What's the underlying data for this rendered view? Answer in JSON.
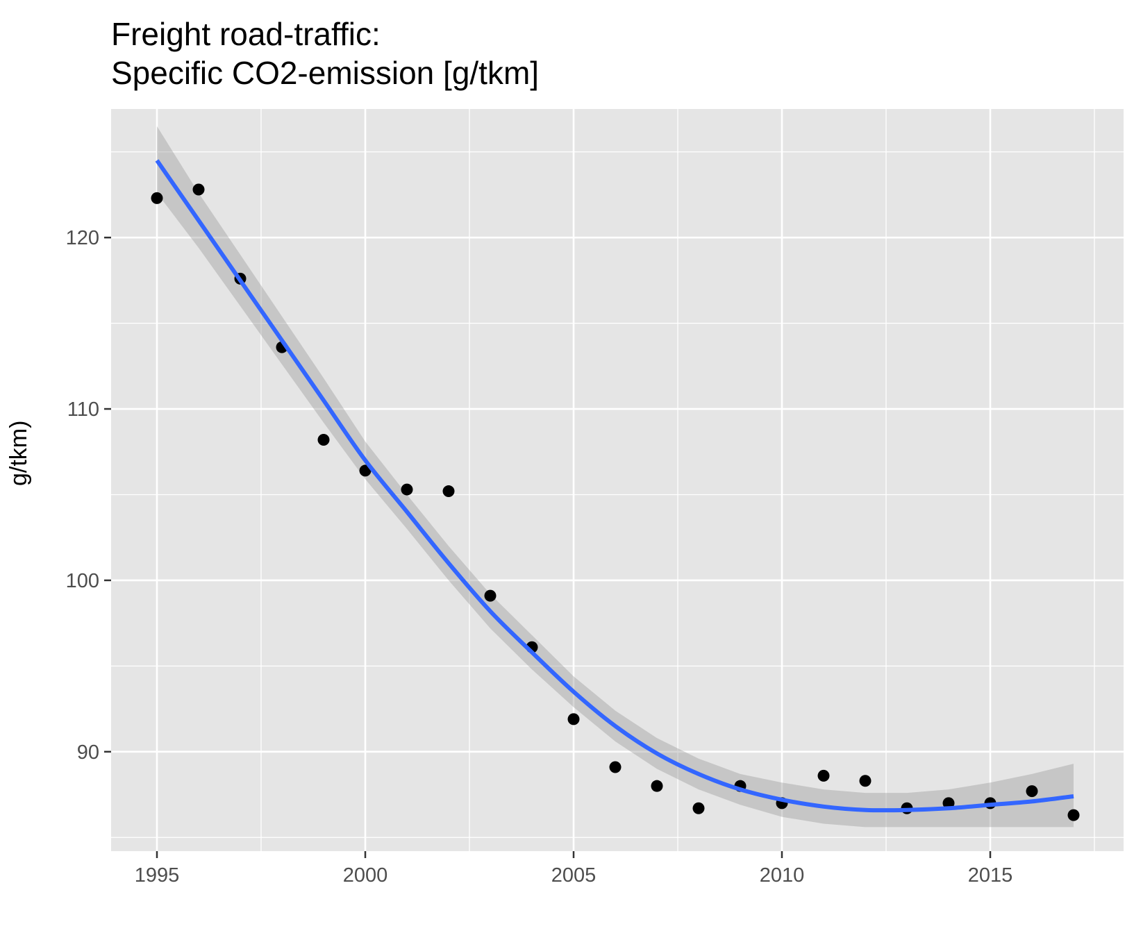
{
  "chart_data": {
    "type": "scatter",
    "title": "Freight road-traffic:",
    "subtitle": "Specific CO2-emission  [g/tkm]",
    "xlabel": "",
    "ylabel": "g/tkm)",
    "xlim": [
      1993.9,
      2018.2
    ],
    "ylim": [
      84.2,
      127.5
    ],
    "xticks": [
      1995,
      2000,
      2005,
      2010,
      2015
    ],
    "yticks": [
      90,
      100,
      110,
      120
    ],
    "grid": true,
    "legend": "none",
    "points": {
      "x": [
        1995,
        1996,
        1997,
        1998,
        1999,
        2000,
        2001,
        2002,
        2003,
        2004,
        2005,
        2006,
        2007,
        2008,
        2009,
        2010,
        2011,
        2012,
        2013,
        2014,
        2015,
        2016,
        2017
      ],
      "y": [
        122.3,
        122.8,
        117.6,
        113.6,
        108.2,
        106.4,
        105.3,
        105.2,
        99.1,
        96.1,
        91.9,
        89.1,
        88.0,
        86.7,
        88.0,
        87.0,
        88.6,
        88.3,
        86.7,
        87.0,
        87.0,
        87.7,
        86.3
      ]
    },
    "smooth": {
      "x": [
        1995,
        1996,
        1997,
        1998,
        1999,
        2000,
        2001,
        2002,
        2003,
        2004,
        2005,
        2006,
        2007,
        2008,
        2009,
        2010,
        2011,
        2012,
        2013,
        2014,
        2015,
        2016,
        2017
      ],
      "y": [
        124.5,
        121.0,
        117.5,
        114.0,
        110.5,
        107.0,
        104.0,
        101.0,
        98.2,
        95.8,
        93.5,
        91.5,
        89.9,
        88.7,
        87.8,
        87.2,
        86.8,
        86.6,
        86.6,
        86.7,
        86.9,
        87.1,
        87.4
      ],
      "lower": [
        122.6,
        119.4,
        116.0,
        112.6,
        109.2,
        105.9,
        103.0,
        100.0,
        97.2,
        94.8,
        92.6,
        90.6,
        89.0,
        87.8,
        86.9,
        86.2,
        85.8,
        85.6,
        85.6,
        85.6,
        85.6,
        85.6,
        85.6
      ],
      "upper": [
        126.5,
        122.6,
        119.0,
        115.4,
        111.8,
        108.1,
        105.0,
        102.0,
        99.2,
        96.8,
        94.4,
        92.4,
        90.8,
        89.6,
        88.7,
        88.2,
        87.8,
        87.6,
        87.6,
        87.8,
        88.2,
        88.7,
        89.3
      ]
    },
    "colors": {
      "panel": "#e5e5e5",
      "grid": "#ffffff",
      "point": "#000000",
      "line": "#3366ff",
      "ribbon": "#bebebe"
    }
  }
}
